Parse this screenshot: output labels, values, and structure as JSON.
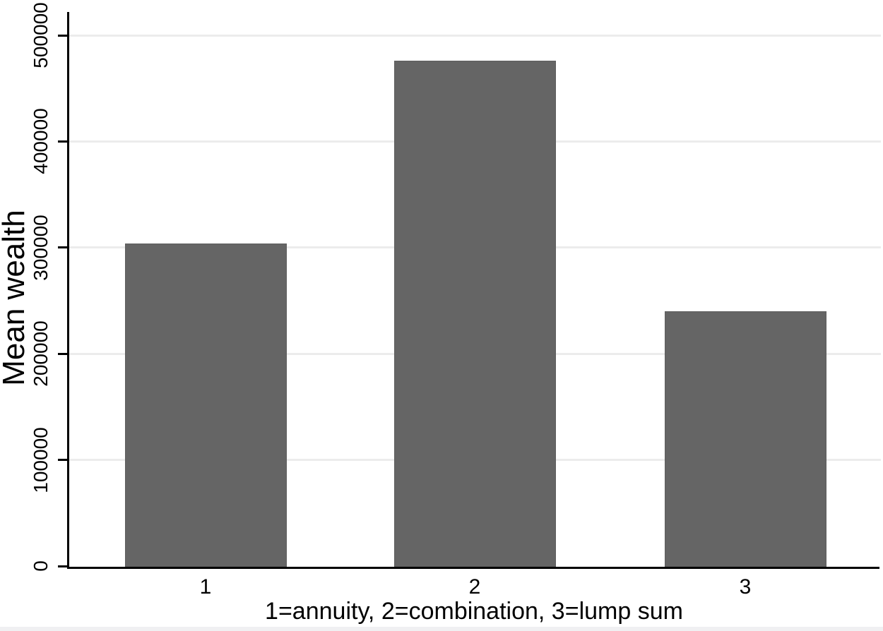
{
  "chart_data": {
    "type": "bar",
    "title": "",
    "categories": [
      "1",
      "2",
      "3"
    ],
    "values": [
      304000,
      476000,
      240000
    ],
    "series": [
      {
        "name": "Mean wealth",
        "values": [
          304000,
          476000,
          240000
        ]
      }
    ],
    "xlabel": "1=annuity, 2=combination, 3=lump sum",
    "ylabel": "Mean wealth",
    "ylim": [
      0,
      500000
    ],
    "yticks": [
      0,
      100000,
      200000,
      300000,
      400000,
      500000
    ],
    "ytick_labels": [
      "0",
      "100000",
      "200000",
      "300000",
      "400000",
      "500000"
    ],
    "xtick_labels": [
      "1",
      "2",
      "3"
    ],
    "grid": "horizontal-light",
    "legend": "none",
    "colors": {
      "bar_fill": "#656565",
      "bar_border": "#5f5f5f",
      "gridline": "#ececec",
      "axis_line": "#000000",
      "text": "#000000",
      "background": "#ffffff",
      "bottom_strip": "#f0f0f2"
    }
  }
}
